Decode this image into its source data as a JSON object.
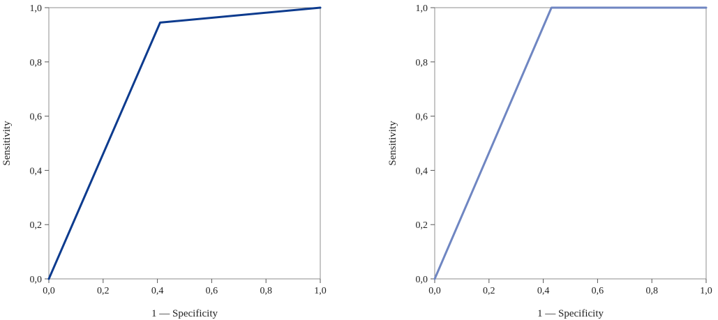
{
  "chart_data": [
    {
      "type": "line",
      "xlabel": "1 — Specificity",
      "ylabel": "Sensitivity",
      "xlim": [
        0,
        1
      ],
      "ylim": [
        0,
        1
      ],
      "xticks": [
        "0,0",
        "0,2",
        "0,4",
        "0,6",
        "0,8",
        "1,0"
      ],
      "yticks": [
        "0,0",
        "0,2",
        "0,4",
        "0,6",
        "0,8",
        "1,0"
      ],
      "grid": false,
      "series": [
        {
          "x": [
            0,
            0.41,
            1.0
          ],
          "y": [
            0,
            0.945,
            1.0
          ],
          "color": "#0d3b8e"
        }
      ]
    },
    {
      "type": "line",
      "xlabel": "1 — Specificity",
      "ylabel": "Sensitivity",
      "xlim": [
        0,
        1
      ],
      "ylim": [
        0,
        1
      ],
      "xticks": [
        "0,0",
        "0,2",
        "0,4",
        "0,6",
        "0,8",
        "1,0"
      ],
      "yticks": [
        "0,0",
        "0,2",
        "0,4",
        "0,6",
        "0,8",
        "1,0"
      ],
      "grid": false,
      "series": [
        {
          "x": [
            0,
            0.43,
            1.0
          ],
          "y": [
            0,
            1.0,
            1.0
          ],
          "color": "#6f86c2"
        }
      ]
    }
  ]
}
